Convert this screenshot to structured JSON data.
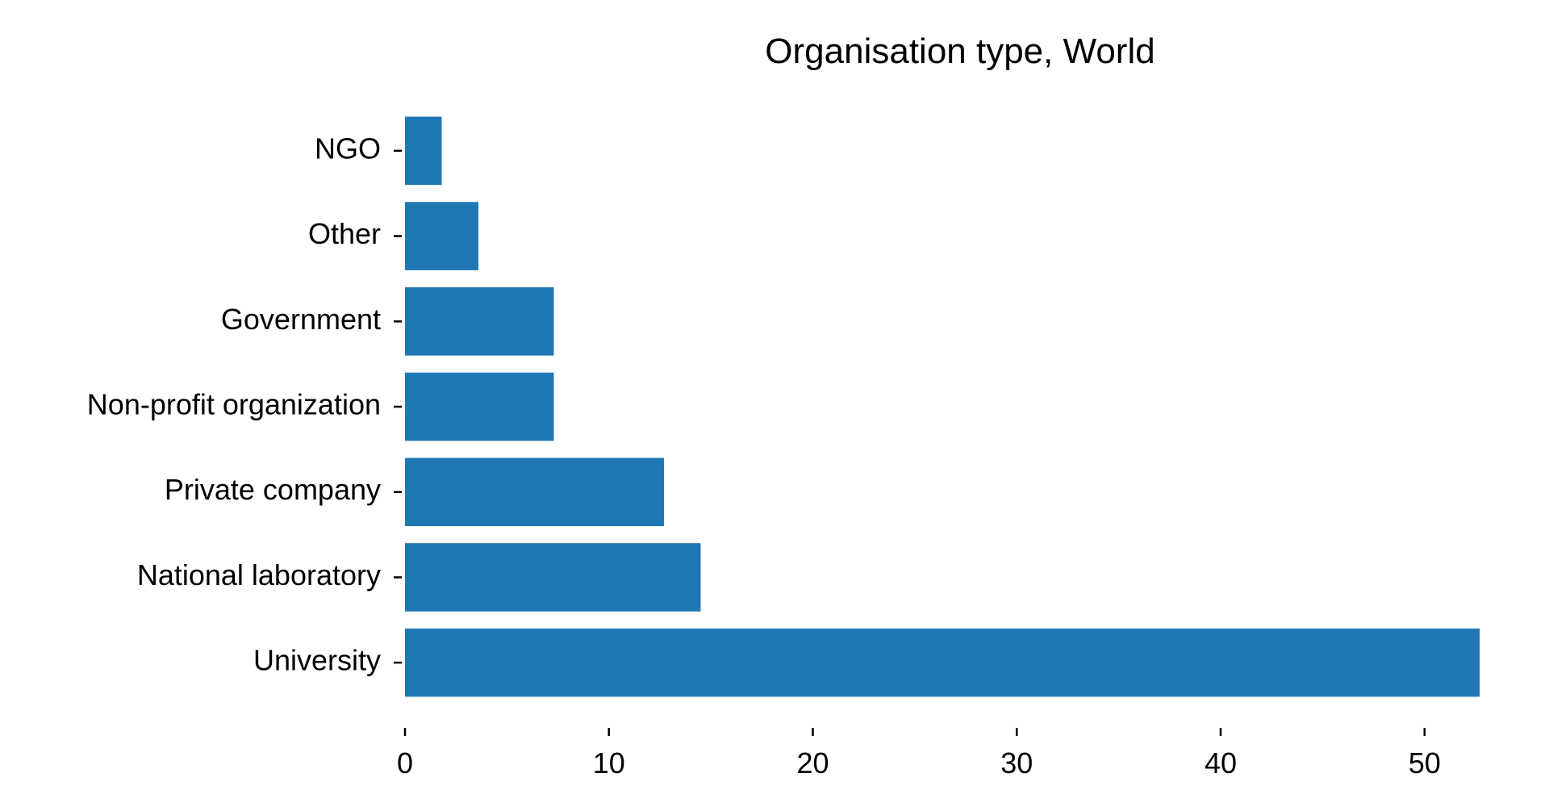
{
  "chart_data": {
    "type": "bar",
    "orientation": "horizontal",
    "title": "Organisation type, World",
    "xlabel": "",
    "ylabel": "",
    "categories": [
      "University",
      "National laboratory",
      "Private company",
      "Non-profit organization",
      "Government",
      "Other",
      "NGO"
    ],
    "values": [
      52.7,
      14.5,
      12.7,
      7.3,
      7.3,
      3.6,
      1.8
    ],
    "xlim": [
      0,
      52.7
    ],
    "xticks": [
      0,
      10,
      20,
      30,
      40,
      50
    ],
    "grid": false,
    "legend": "none",
    "colors": {
      "bar": "#1f77b4",
      "text": "#000000",
      "tick": "#000000"
    }
  }
}
